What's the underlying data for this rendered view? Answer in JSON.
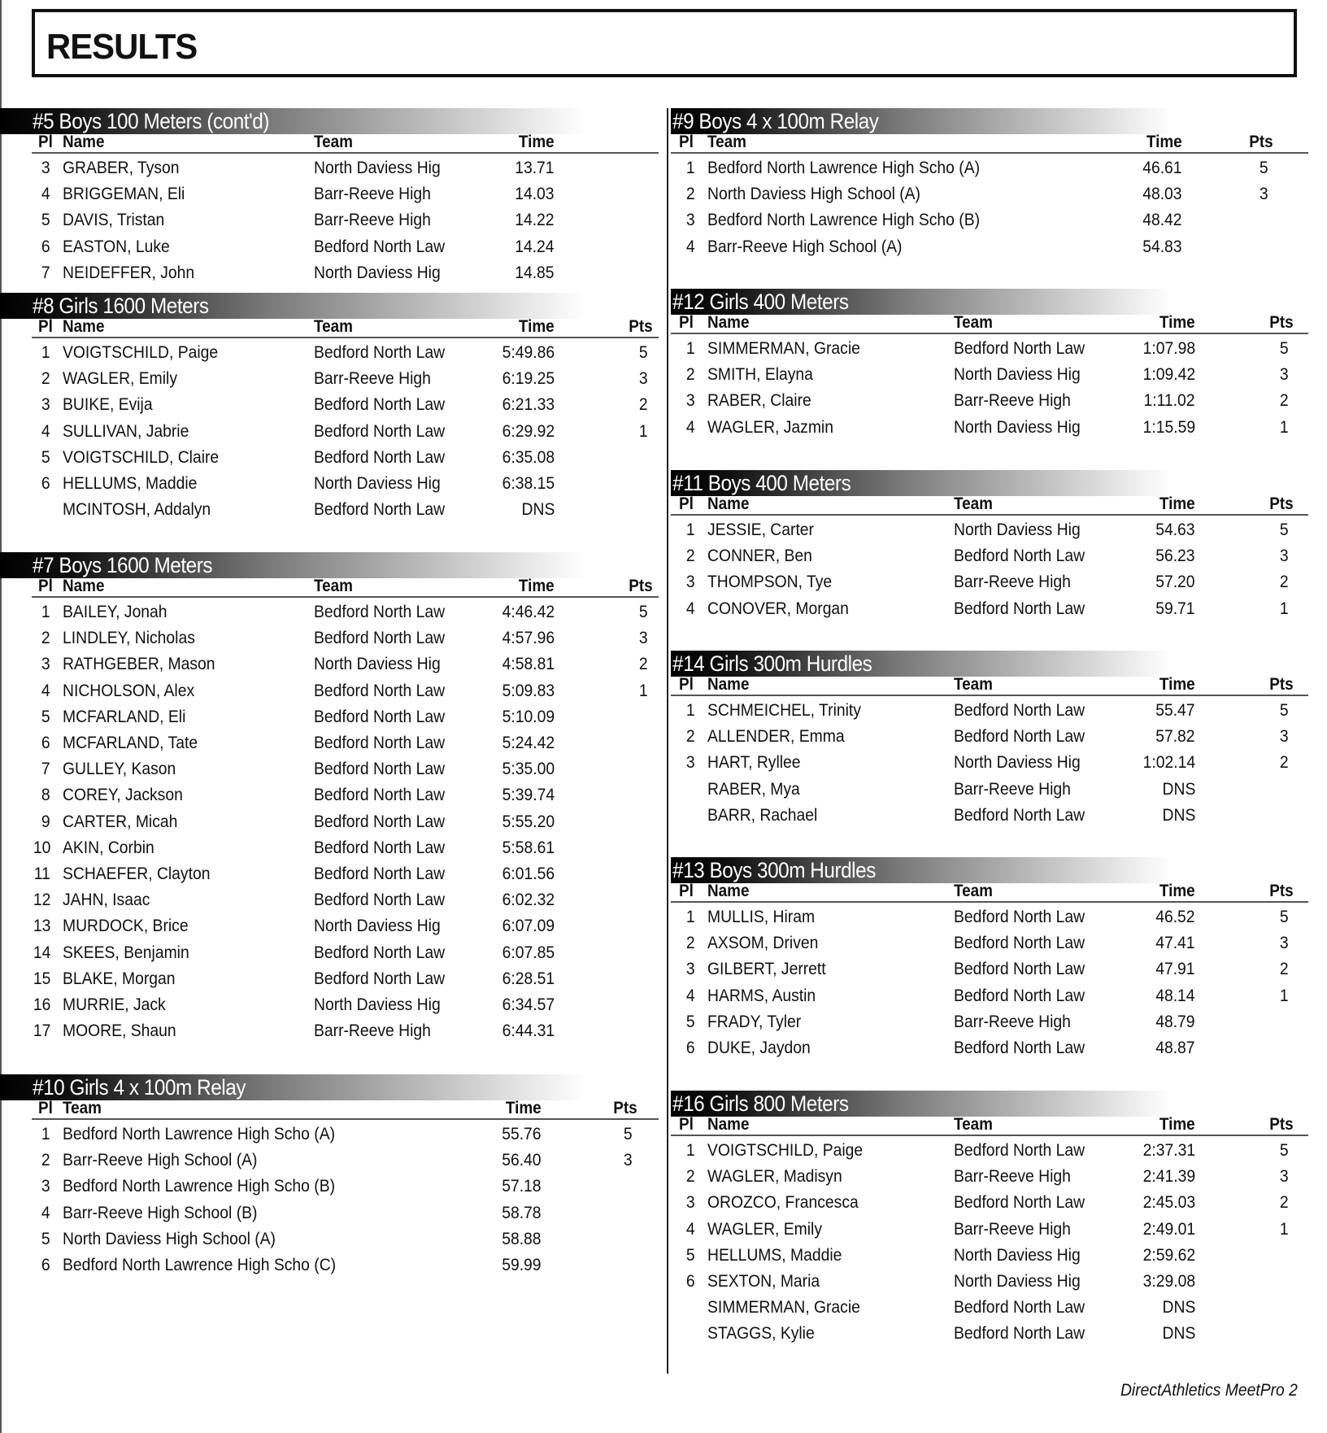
{
  "title": "RESULTS",
  "footer": "DirectAthletics MeetPro 2",
  "headers": {
    "place": "Pl",
    "name": "Name",
    "team": "Team",
    "time": "Time",
    "points": "Pts"
  },
  "columns": {
    "left": [
      {
        "event": "#5 Boys 100 Meters (cont'd)",
        "relay": false,
        "show_points": false,
        "results": [
          {
            "place": "3",
            "name": "GRABER, Tyson",
            "team": "North Daviess Hig",
            "time": "13.71",
            "points": ""
          },
          {
            "place": "4",
            "name": "BRIGGEMAN, Eli",
            "team": "Barr-Reeve High",
            "time": "14.03",
            "points": ""
          },
          {
            "place": "5",
            "name": "DAVIS, Tristan",
            "team": "Barr-Reeve High",
            "time": "14.22",
            "points": ""
          },
          {
            "place": "6",
            "name": "EASTON, Luke",
            "team": "Bedford North Law",
            "time": "14.24",
            "points": ""
          },
          {
            "place": "7",
            "name": "NEIDEFFER, John",
            "team": "North Daviess Hig",
            "time": "14.85",
            "points": ""
          }
        ]
      },
      {
        "event": "#8 Girls 1600 Meters",
        "relay": false,
        "show_points": true,
        "results": [
          {
            "place": "1",
            "name": "VOIGTSCHILD, Paige",
            "team": "Bedford North Law",
            "time": "5:49.86",
            "points": "5"
          },
          {
            "place": "2",
            "name": "WAGLER, Emily",
            "team": "Barr-Reeve High",
            "time": "6:19.25",
            "points": "3"
          },
          {
            "place": "3",
            "name": "BUIKE, Evija",
            "team": "Bedford North Law",
            "time": "6:21.33",
            "points": "2"
          },
          {
            "place": "4",
            "name": "SULLIVAN, Jabrie",
            "team": "Bedford North Law",
            "time": "6:29.92",
            "points": "1"
          },
          {
            "place": "5",
            "name": "VOIGTSCHILD, Claire",
            "team": "Bedford North Law",
            "time": "6:35.08",
            "points": ""
          },
          {
            "place": "6",
            "name": "HELLUMS, Maddie",
            "team": "North Daviess Hig",
            "time": "6:38.15",
            "points": ""
          },
          {
            "place": "",
            "name": "MCINTOSH, Addalyn",
            "team": "Bedford North Law",
            "time": "DNS",
            "points": ""
          }
        ]
      },
      {
        "event": "#7 Boys 1600 Meters",
        "relay": false,
        "show_points": true,
        "results": [
          {
            "place": "1",
            "name": "BAILEY, Jonah",
            "team": "Bedford North Law",
            "time": "4:46.42",
            "points": "5"
          },
          {
            "place": "2",
            "name": "LINDLEY, Nicholas",
            "team": "Bedford North Law",
            "time": "4:57.96",
            "points": "3"
          },
          {
            "place": "3",
            "name": "RATHGEBER, Mason",
            "team": "North Daviess Hig",
            "time": "4:58.81",
            "points": "2"
          },
          {
            "place": "4",
            "name": "NICHOLSON, Alex",
            "team": "Bedford North Law",
            "time": "5:09.83",
            "points": "1"
          },
          {
            "place": "5",
            "name": "MCFARLAND, Eli",
            "team": "Bedford North Law",
            "time": "5:10.09",
            "points": ""
          },
          {
            "place": "6",
            "name": "MCFARLAND, Tate",
            "team": "Bedford North Law",
            "time": "5:24.42",
            "points": ""
          },
          {
            "place": "7",
            "name": "GULLEY, Kason",
            "team": "Bedford North Law",
            "time": "5:35.00",
            "points": ""
          },
          {
            "place": "8",
            "name": "COREY, Jackson",
            "team": "Bedford North Law",
            "time": "5:39.74",
            "points": ""
          },
          {
            "place": "9",
            "name": "CARTER, Micah",
            "team": "Bedford North Law",
            "time": "5:55.20",
            "points": ""
          },
          {
            "place": "10",
            "name": "AKIN, Corbin",
            "team": "Bedford North Law",
            "time": "5:58.61",
            "points": ""
          },
          {
            "place": "11",
            "name": "SCHAEFER, Clayton",
            "team": "Bedford North Law",
            "time": "6:01.56",
            "points": ""
          },
          {
            "place": "12",
            "name": "JAHN, Isaac",
            "team": "Bedford North Law",
            "time": "6:02.32",
            "points": ""
          },
          {
            "place": "13",
            "name": "MURDOCK, Brice",
            "team": "North Daviess Hig",
            "time": "6:07.09",
            "points": ""
          },
          {
            "place": "14",
            "name": "SKEES, Benjamin",
            "team": "Bedford North Law",
            "time": "6:07.85",
            "points": ""
          },
          {
            "place": "15",
            "name": "BLAKE, Morgan",
            "team": "Bedford North Law",
            "time": "6:28.51",
            "points": ""
          },
          {
            "place": "16",
            "name": "MURRIE, Jack",
            "team": "North Daviess Hig",
            "time": "6:34.57",
            "points": ""
          },
          {
            "place": "17",
            "name": "MOORE, Shaun",
            "team": "Barr-Reeve High",
            "time": "6:44.31",
            "points": ""
          }
        ]
      },
      {
        "event": "#10 Girls 4 x 100m Relay",
        "relay": true,
        "show_points": true,
        "results": [
          {
            "place": "1",
            "team": "Bedford North Lawrence High Scho (A)",
            "time": "55.76",
            "points": "5"
          },
          {
            "place": "2",
            "team": "Barr-Reeve High School (A)",
            "time": "56.40",
            "points": "3"
          },
          {
            "place": "3",
            "team": "Bedford North Lawrence High Scho (B)",
            "time": "57.18",
            "points": ""
          },
          {
            "place": "4",
            "team": "Barr-Reeve High School (B)",
            "time": "58.78",
            "points": ""
          },
          {
            "place": "5",
            "team": "North Daviess High School (A)",
            "time": "58.88",
            "points": ""
          },
          {
            "place": "6",
            "team": "Bedford North Lawrence High Scho (C)",
            "time": "59.99",
            "points": ""
          }
        ]
      }
    ],
    "right": [
      {
        "event": "#9 Boys 4 x 100m Relay",
        "relay": true,
        "show_points": true,
        "results": [
          {
            "place": "1",
            "team": "Bedford North Lawrence High Scho (A)",
            "time": "46.61",
            "points": "5"
          },
          {
            "place": "2",
            "team": "North Daviess High School (A)",
            "time": "48.03",
            "points": "3"
          },
          {
            "place": "3",
            "team": "Bedford North Lawrence High Scho (B)",
            "time": "48.42",
            "points": ""
          },
          {
            "place": "4",
            "team": "Barr-Reeve High School (A)",
            "time": "54.83",
            "points": ""
          }
        ]
      },
      {
        "event": "#12 Girls 400 Meters",
        "relay": false,
        "show_points": true,
        "results": [
          {
            "place": "1",
            "name": "SIMMERMAN, Gracie",
            "team": "Bedford North Law",
            "time": "1:07.98",
            "points": "5"
          },
          {
            "place": "2",
            "name": "SMITH, Elayna",
            "team": "North Daviess Hig",
            "time": "1:09.42",
            "points": "3"
          },
          {
            "place": "3",
            "name": "RABER, Claire",
            "team": "Barr-Reeve High",
            "time": "1:11.02",
            "points": "2"
          },
          {
            "place": "4",
            "name": "WAGLER, Jazmin",
            "team": "North Daviess Hig",
            "time": "1:15.59",
            "points": "1"
          }
        ]
      },
      {
        "event": "#11 Boys 400 Meters",
        "relay": false,
        "show_points": true,
        "results": [
          {
            "place": "1",
            "name": "JESSIE, Carter",
            "team": "North Daviess Hig",
            "time": "54.63",
            "points": "5"
          },
          {
            "place": "2",
            "name": "CONNER, Ben",
            "team": "Bedford North Law",
            "time": "56.23",
            "points": "3"
          },
          {
            "place": "3",
            "name": "THOMPSON, Tye",
            "team": "Barr-Reeve High",
            "time": "57.20",
            "points": "2"
          },
          {
            "place": "4",
            "name": "CONOVER, Morgan",
            "team": "Bedford North Law",
            "time": "59.71",
            "points": "1"
          }
        ]
      },
      {
        "event": "#14 Girls 300m Hurdles",
        "relay": false,
        "show_points": true,
        "results": [
          {
            "place": "1",
            "name": "SCHMEICHEL, Trinity",
            "team": "Bedford North Law",
            "time": "55.47",
            "points": "5"
          },
          {
            "place": "2",
            "name": "ALLENDER, Emma",
            "team": "Bedford North Law",
            "time": "57.82",
            "points": "3"
          },
          {
            "place": "3",
            "name": "HART, Ryllee",
            "team": "North Daviess Hig",
            "time": "1:02.14",
            "points": "2"
          },
          {
            "place": "",
            "name": "RABER, Mya",
            "team": "Barr-Reeve High",
            "time": "DNS",
            "points": ""
          },
          {
            "place": "",
            "name": "BARR, Rachael",
            "team": "Bedford North Law",
            "time": "DNS",
            "points": ""
          }
        ]
      },
      {
        "event": "#13 Boys 300m Hurdles",
        "relay": false,
        "show_points": true,
        "results": [
          {
            "place": "1",
            "name": "MULLIS, Hiram",
            "team": "Bedford North Law",
            "time": "46.52",
            "points": "5"
          },
          {
            "place": "2",
            "name": "AXSOM, Driven",
            "team": "Bedford North Law",
            "time": "47.41",
            "points": "3"
          },
          {
            "place": "3",
            "name": "GILBERT, Jerrett",
            "team": "Bedford North Law",
            "time": "47.91",
            "points": "2"
          },
          {
            "place": "4",
            "name": "HARMS, Austin",
            "team": "Bedford North Law",
            "time": "48.14",
            "points": "1"
          },
          {
            "place": "5",
            "name": "FRADY, Tyler",
            "team": "Barr-Reeve High",
            "time": "48.79",
            "points": ""
          },
          {
            "place": "6",
            "name": "DUKE, Jaydon",
            "team": "Bedford North Law",
            "time": "48.87",
            "points": ""
          }
        ]
      },
      {
        "event": "#16 Girls 800 Meters",
        "relay": false,
        "show_points": true,
        "results": [
          {
            "place": "1",
            "name": "VOIGTSCHILD, Paige",
            "team": "Bedford North Law",
            "time": "2:37.31",
            "points": "5"
          },
          {
            "place": "2",
            "name": "WAGLER, Madisyn",
            "team": "Barr-Reeve High",
            "time": "2:41.39",
            "points": "3"
          },
          {
            "place": "3",
            "name": "OROZCO, Francesca",
            "team": "Bedford North Law",
            "time": "2:45.03",
            "points": "2"
          },
          {
            "place": "4",
            "name": "WAGLER, Emily",
            "team": "Barr-Reeve High",
            "time": "2:49.01",
            "points": "1"
          },
          {
            "place": "5",
            "name": "HELLUMS, Maddie",
            "team": "North Daviess Hig",
            "time": "2:59.62",
            "points": ""
          },
          {
            "place": "6",
            "name": "SEXTON, Maria",
            "team": "North Daviess Hig",
            "time": "3:29.08",
            "points": ""
          },
          {
            "place": "",
            "name": "SIMMERMAN, Gracie",
            "team": "Bedford North Law",
            "time": "DNS",
            "points": ""
          },
          {
            "place": "",
            "name": "STAGGS, Kylie",
            "team": "Bedford North Law",
            "time": "DNS",
            "points": ""
          }
        ]
      }
    ]
  }
}
